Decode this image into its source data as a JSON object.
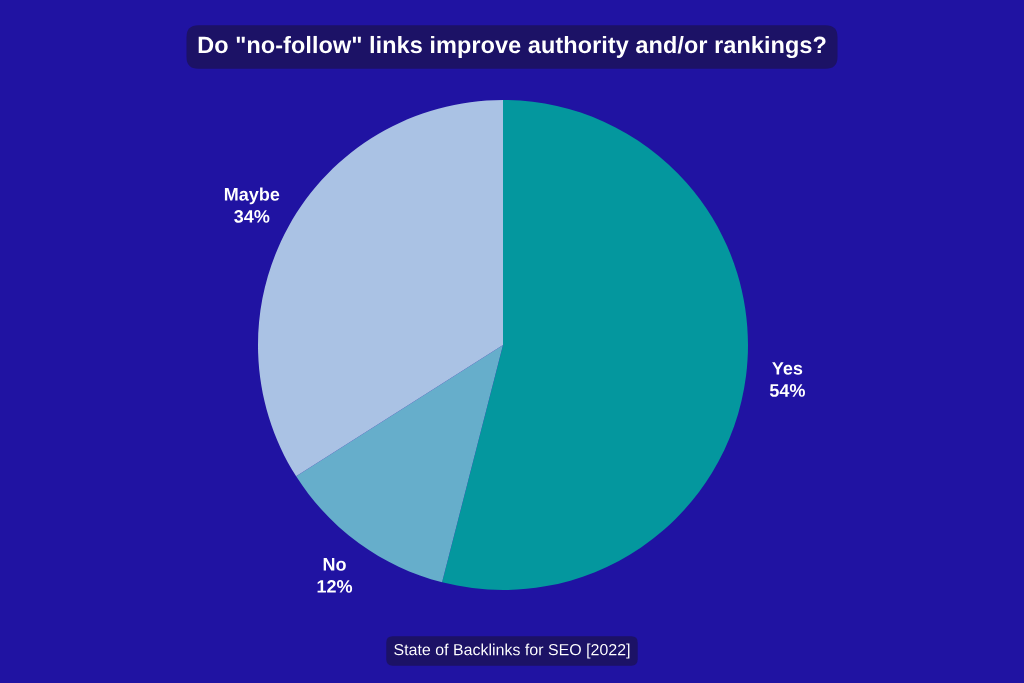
{
  "chart_data": {
    "type": "pie",
    "title": "Do \"no-follow\" links improve authority and/or rankings?",
    "categories": [
      "Yes",
      "No",
      "Maybe"
    ],
    "values": [
      54,
      12,
      34
    ],
    "value_labels": [
      "54%",
      "12%",
      "34%"
    ],
    "colors": [
      "#04979e",
      "#66aecb",
      "#aac2e4"
    ],
    "legend": false,
    "annotations": [
      "State of Backlinks for SEO [2022]"
    ]
  }
}
